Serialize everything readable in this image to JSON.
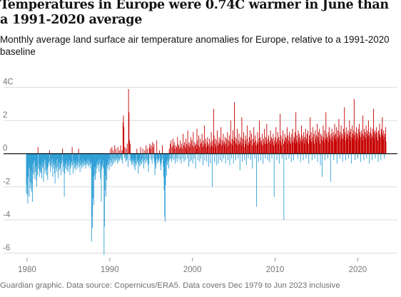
{
  "title": "Temperatures in Europe were 0.74C warmer in June than a 1991-2020 average",
  "subtitle": "Monthly average land surface air temperature anomalies for Europe, relative to a 1991-2020 baseline",
  "footer": "Guardian graphic. Data source: Copernicus/ERA5. Data covers Dec 1979 to Jun 2023 inclusive",
  "colors": {
    "positive": "#c70000",
    "negative": "#2f9fd6",
    "grid": "#dcdcdc",
    "axis": "#121212"
  },
  "chart_data": {
    "type": "bar",
    "x_range": [
      "1979-12",
      "2023-06"
    ],
    "ylim": [
      -6.2,
      4.2
    ],
    "y_ticks": [
      {
        "value": 4,
        "label": "4C"
      },
      {
        "value": 2,
        "label": "2"
      },
      {
        "value": 0,
        "label": "0"
      },
      {
        "value": -2,
        "label": "-2"
      },
      {
        "value": -4,
        "label": "-4"
      },
      {
        "value": -6,
        "label": "-6"
      }
    ],
    "x_ticks": [
      {
        "year": 1980,
        "label": "1980"
      },
      {
        "year": 1990,
        "label": "1990"
      },
      {
        "year": 2000,
        "label": "2000"
      },
      {
        "year": 2010,
        "label": "2010"
      },
      {
        "year": 2020,
        "label": "2020"
      }
    ],
    "grid": true,
    "last_value": 0.74,
    "values": [
      -2.4,
      -1.9,
      -2.5,
      -3.0,
      -1.4,
      -0.9,
      -2.6,
      -0.8,
      -1.7,
      -2.1,
      -1.0,
      -2.3,
      -1.8,
      -2.9,
      -0.6,
      -1.2,
      -0.5,
      -1.5,
      -0.4,
      -1.1,
      -0.8,
      -1.6,
      -2.0,
      -0.7,
      -1.3,
      0.4,
      -0.9,
      -0.6,
      -1.4,
      -1.0,
      -1.1,
      -0.7,
      -1.2,
      -1.5,
      -0.5,
      -0.8,
      -0.9,
      -1.7,
      -0.6,
      -0.3,
      -1.2,
      -0.4,
      -1.0,
      -0.7,
      -1.3,
      -0.9,
      -1.6,
      -0.8,
      -0.6,
      -0.5,
      0.2,
      -0.7,
      -1.1,
      -0.4,
      -0.8,
      -0.6,
      -0.3,
      -1.4,
      -0.9,
      -0.5,
      -0.7,
      -1.2,
      -1.8,
      -0.6,
      -0.9,
      -0.4,
      -1.1,
      -0.3,
      -0.8,
      -1.5,
      -0.6,
      -1.0,
      -0.5,
      -0.9,
      -0.7,
      -1.3,
      -0.6,
      -0.4,
      0.3,
      -1.1,
      -0.8,
      -0.5,
      -2.6,
      -1.2,
      -0.7,
      -0.9,
      -0.6,
      -0.4,
      -1.0,
      -0.8,
      -1.1,
      -0.5,
      -0.7,
      -0.4,
      -1.3,
      -0.9,
      -0.6,
      -0.8,
      -0.5,
      0.4,
      -0.7,
      -1.2,
      -0.4,
      -0.6,
      -0.9,
      -0.5,
      -0.8,
      -1.0,
      -0.4,
      -0.7,
      -0.6,
      -0.9,
      -0.5,
      0.3,
      -0.8,
      -0.6,
      -1.1,
      -0.4,
      -0.7,
      -0.5,
      -0.9,
      -0.6,
      -0.3,
      -0.8,
      -0.5,
      -0.7,
      -0.4,
      -0.6,
      -0.9,
      -0.5,
      -0.7,
      -0.4,
      -0.6,
      -0.3,
      -0.8,
      -0.5,
      -0.7,
      -0.4,
      -0.9,
      -0.6,
      -0.5,
      -5.3,
      -3.8,
      -4.5,
      -2.7,
      -1.3,
      -3.1,
      -1.4,
      -0.8,
      -1.6,
      -0.8,
      -1.2,
      -0.6,
      -0.9,
      -0.5,
      -0.7,
      -0.4,
      -1.1,
      -0.6,
      -0.3,
      -1.5,
      -0.7,
      -2.9,
      -1.0,
      -0.6,
      -0.8,
      -0.4,
      -0.9,
      -6.1,
      -4.4,
      -2.2,
      -1.3,
      -2.6,
      -0.7,
      -1.6,
      -0.9,
      -0.5,
      -0.7,
      -0.3,
      -1.0,
      -0.6,
      -0.4,
      0.3,
      -0.8,
      -0.5,
      0.4,
      -0.7,
      -0.3,
      0.2,
      -0.6,
      -0.4,
      0.5,
      -0.5,
      -0.3,
      0.3,
      -0.4,
      -0.2,
      -0.6,
      0.4,
      -0.3,
      -0.5,
      0.2,
      -0.4,
      -0.3,
      0.5,
      -0.2,
      -0.4,
      0.2,
      -0.6,
      1.9,
      2.3,
      1.6,
      -0.3,
      0.4,
      -0.2,
      -0.5,
      0.3,
      -0.4,
      0.6,
      -0.3,
      -0.8,
      3.9,
      2.5,
      0.8,
      -0.4,
      0.6,
      -0.5,
      -0.3,
      -0.7,
      -0.4,
      -0.6,
      -0.3,
      -0.5,
      -0.8,
      -0.4,
      -1.0,
      -0.6,
      -0.3,
      -0.7,
      0.3,
      -0.5,
      -0.4,
      -1.2,
      -0.6,
      -0.3,
      -0.8,
      -0.5,
      0.4,
      -0.7,
      -0.4,
      -0.6,
      -0.3,
      0.3,
      -0.5,
      -0.9,
      -0.4,
      0.2,
      -0.6,
      -0.3,
      0.5,
      -0.5,
      -0.4,
      0.3,
      -0.7,
      -1.1,
      -0.6,
      0.4,
      0.6,
      -0.3,
      0.3,
      0.5,
      -0.4,
      -0.6,
      0.7,
      0.4,
      -0.3,
      0.6,
      -0.5,
      -1.3,
      -0.7,
      -0.9,
      -0.4,
      0.8,
      -0.3,
      -0.6,
      -0.5,
      -0.4,
      -0.3,
      0.2,
      -0.5,
      -0.7,
      -1.0,
      -0.6,
      -0.4,
      0.5,
      -0.3,
      -0.8,
      -1.4,
      -2.2,
      -3.8,
      -4.1,
      -1.9,
      -0.6,
      -1.3,
      -0.4,
      -0.7,
      -0.3,
      -0.5,
      -0.9,
      0.3,
      -0.4,
      0.6,
      -0.3,
      0.8,
      -0.5,
      0.4,
      -0.3,
      0.9,
      0.5,
      -0.4,
      0.7,
      0.3,
      -0.6,
      0.5,
      -0.3,
      0.4,
      -0.5,
      1.0,
      0.6,
      -0.3,
      0.5,
      0.3,
      -0.4,
      0.8,
      0.4,
      -0.6,
      0.6,
      0.3,
      -0.3,
      1.2,
      0.5,
      -0.5,
      0.7,
      0.4,
      -0.4,
      0.9,
      0.3,
      0.6,
      -0.3,
      1.4,
      0.5,
      -0.8,
      0.7,
      0.4,
      -0.5,
      0.6,
      1.0,
      -0.4,
      0.8,
      0.5,
      -0.6,
      1.3,
      0.4,
      -0.3,
      0.7,
      0.5,
      -0.9,
      0.6,
      0.3,
      1.5,
      0.8,
      -0.4,
      0.5,
      1.1,
      0.4,
      -0.5,
      0.9,
      0.6,
      -0.3,
      0.7,
      1.2,
      0.4,
      -0.7,
      0.8,
      0.5,
      1.7,
      -0.4,
      0.6,
      0.9,
      0.4,
      -0.5,
      0.7,
      1.0,
      0.5,
      -0.8,
      0.6,
      0.9,
      0.4,
      -0.6,
      0.7,
      1.3,
      0.5,
      -2.0,
      0.8,
      0.4,
      2.7,
      1.1,
      -0.5,
      0.6,
      0.9,
      0.4,
      -0.7,
      0.8,
      1.4,
      0.5,
      -0.6,
      0.7,
      1.0,
      0.6,
      -0.4,
      0.9,
      1.6,
      0.5,
      -0.5,
      0.8,
      0.6,
      1.2,
      -0.3,
      0.7,
      0.5,
      1.0,
      -0.6,
      0.6,
      0.9,
      0.4,
      1.3,
      -0.4,
      0.8,
      0.5,
      1.1,
      -0.7,
      0.7,
      2.0,
      0.6,
      -0.3,
      0.9,
      0.5,
      1.4,
      -0.6,
      0.8,
      3.1,
      0.7,
      1.0,
      -0.4,
      0.6,
      0.9,
      1.5,
      0.5,
      -0.3,
      0.8,
      1.2,
      0.6,
      -1.0,
      0.7,
      1.0,
      0.5,
      2.2,
      -0.5,
      0.9,
      0.6,
      1.3,
      0.4,
      -0.4,
      0.8,
      1.1,
      0.6,
      -0.7,
      0.9,
      1.7,
      0.5,
      -0.3,
      0.7,
      1.0,
      0.6,
      1.4,
      -0.4,
      0.8,
      1.2,
      0.5,
      -0.9,
      0.9,
      0.6,
      1.6,
      0.7,
      -0.3,
      1.1,
      0.8,
      0.5,
      -3.2,
      0.7,
      1.3,
      0.6,
      -0.5,
      0.9,
      2.0,
      0.7,
      1.0,
      -0.4,
      0.8,
      0.6,
      1.2,
      0.5,
      -0.6,
      0.9,
      0.7,
      1.5,
      0.6,
      -0.3,
      1.0,
      0.8,
      1.8,
      0.6,
      -0.4,
      0.9,
      1.1,
      0.7,
      -0.5,
      0.8,
      1.4,
      0.6,
      1.0,
      -0.3,
      0.9,
      0.7,
      1.2,
      0.5,
      -2.6,
      0.8,
      1.0,
      0.6,
      1.6,
      0.7,
      -0.4,
      0.9,
      1.3,
      0.6,
      1.0,
      -0.6,
      0.8,
      2.4,
      0.7,
      1.1,
      0.5,
      -0.3,
      0.9,
      1.4,
      0.6,
      -4.0,
      0.8,
      1.2,
      0.7,
      1.0,
      -0.4,
      0.9,
      1.6,
      0.6,
      1.1,
      0.8,
      -0.3,
      1.3,
      0.7,
      1.0,
      0.6,
      -0.5,
      1.2,
      0.8,
      1.5,
      0.7,
      -0.4,
      1.0,
      0.9,
      1.3,
      0.6,
      2.5,
      0.8,
      1.1,
      0.7,
      -0.3,
      1.4,
      0.9,
      1.2,
      0.6,
      1.0,
      -0.5,
      0.8,
      1.7,
      0.7,
      1.1,
      0.9,
      -0.4,
      1.3,
      0.6,
      1.0,
      0.8,
      1.5,
      -0.3,
      0.9,
      1.2,
      0.7,
      1.4,
      0.6,
      -0.6,
      1.1,
      0.8,
      2.2,
      0.9,
      1.3,
      0.7,
      -0.4,
      1.0,
      1.6,
      0.8,
      1.2,
      0.6,
      -0.3,
      1.4,
      0.9,
      1.1,
      0.7,
      1.8,
      -0.5,
      1.0,
      1.3,
      0.8,
      1.5,
      0.6,
      -0.7,
      1.2,
      0.9,
      1.1,
      -1.4,
      0.8,
      1.7,
      1.0,
      0.7,
      1.4,
      -0.4,
      0.9,
      2.5,
      1.2,
      0.8,
      1.0,
      -0.3,
      1.3,
      0.7,
      1.6,
      1.1,
      0.9,
      -1.7,
      1.2,
      0.8,
      1.5,
      1.0,
      0.7,
      1.3,
      -0.4,
      1.1,
      1.8,
      0.9,
      1.2,
      0.8,
      1.6,
      -0.6,
      1.0,
      1.4,
      0.9,
      2.1,
      1.1,
      -0.3,
      1.3,
      0.8,
      1.7,
      1.0,
      1.2,
      -0.5,
      0.9,
      1.5,
      1.1,
      2.8,
      1.3,
      0.8,
      -0.4,
      1.6,
      1.0,
      1.2,
      0.9,
      1.4,
      -0.3,
      1.1,
      2.0,
      1.3,
      0.8,
      1.5,
      -0.6,
      1.0,
      1.7,
      1.2,
      0.9,
      1.4,
      3.3,
      1.1,
      -0.4,
      1.3,
      0.8,
      1.6,
      1.0,
      1.2,
      -0.3,
      1.5,
      0.9,
      1.8,
      1.1,
      1.3,
      -0.5,
      1.0,
      1.4,
      1.2,
      0.8,
      2.3,
      1.1,
      -0.4,
      1.5,
      1.0,
      1.3,
      0.9,
      1.7,
      -0.3,
      1.2,
      1.4,
      1.0,
      2.0,
      1.1,
      -0.6,
      1.3,
      0.9,
      1.6,
      1.2,
      1.0,
      -0.4,
      1.5,
      1.1,
      2.7,
      1.3,
      0.9,
      1.4,
      -0.3,
      1.2,
      1.6,
      1.0,
      1.3,
      0.8,
      -0.5,
      1.4,
      1.1,
      1.8,
      1.2,
      1.0,
      -0.4,
      1.5,
      1.3,
      2.2,
      1.1,
      0.9,
      1.4,
      -0.3,
      1.2,
      1.0,
      1.6,
      0.74
    ]
  }
}
